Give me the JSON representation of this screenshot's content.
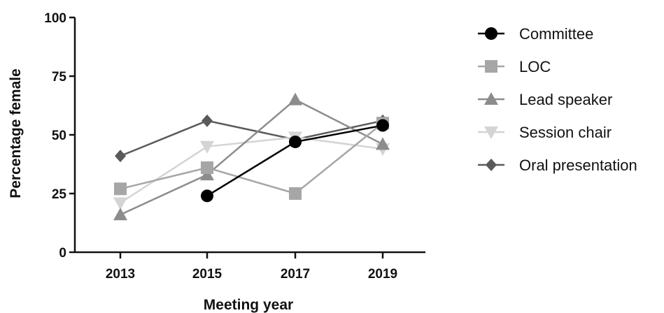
{
  "chart_data": {
    "type": "line",
    "title": "",
    "xlabel": "Meeting year",
    "ylabel": "Percentage female",
    "x": [
      2013,
      2015,
      2017,
      2019
    ],
    "x_tick_labels": [
      "2013",
      "2015",
      "2017",
      "2019"
    ],
    "ylim": [
      0,
      100
    ],
    "y_ticks": [
      0,
      25,
      50,
      75,
      100
    ],
    "y_tick_labels": [
      "0",
      "25",
      "50",
      "75",
      "100"
    ],
    "grid": false,
    "legend_position": "right",
    "series": [
      {
        "name": "Committee",
        "marker": "circle",
        "color": "#000000",
        "values": [
          null,
          24,
          47,
          54
        ]
      },
      {
        "name": "LOC",
        "marker": "square",
        "color": "#a6a6a6",
        "values": [
          27,
          36,
          25,
          55
        ]
      },
      {
        "name": "Lead speaker",
        "marker": "triangle-up",
        "color": "#8c8c8c",
        "values": [
          16,
          33,
          65,
          46
        ]
      },
      {
        "name": "Session chair",
        "marker": "triangle-down",
        "color": "#d4d4d4",
        "values": [
          21,
          45,
          49,
          44
        ]
      },
      {
        "name": "Oral presentation",
        "marker": "diamond",
        "color": "#5a5a5a",
        "values": [
          41,
          56,
          48,
          56
        ]
      }
    ]
  }
}
